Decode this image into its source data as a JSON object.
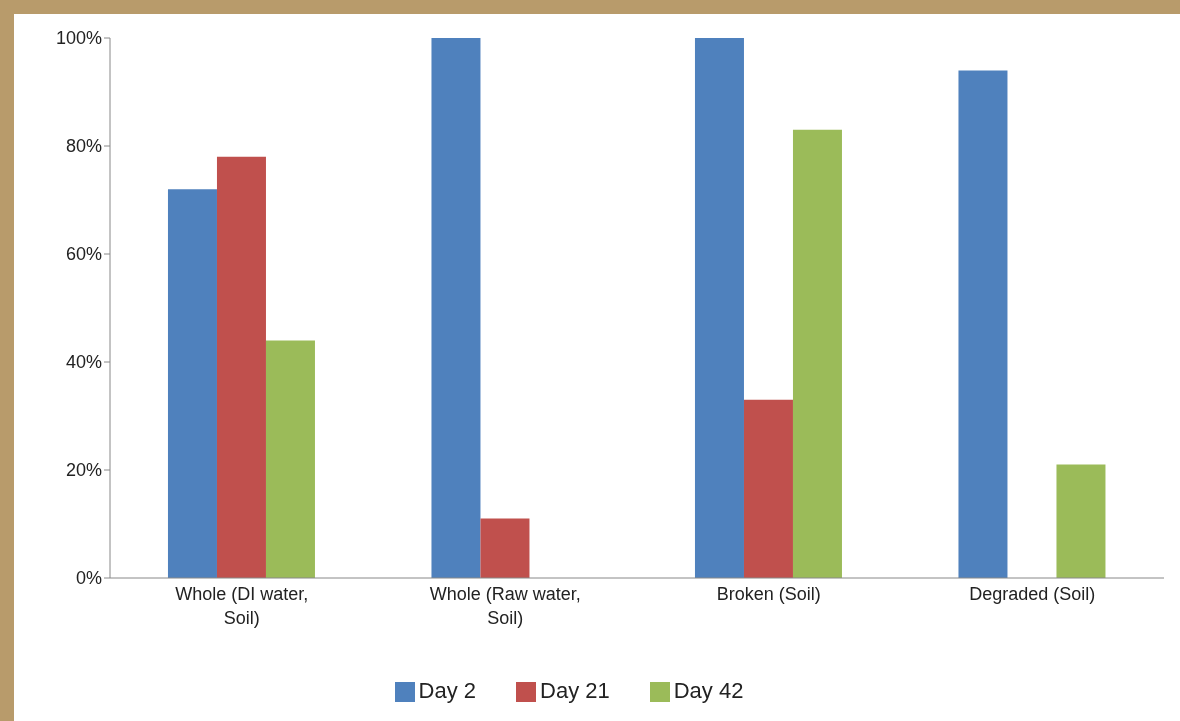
{
  "chart_data": {
    "type": "bar",
    "categories": [
      "Whole (DI water, Soil)",
      "Whole (Raw water, Soil)",
      "Broken (Soil)",
      "Degraded (Soil)"
    ],
    "series": [
      {
        "name": "Day 2",
        "color": "#4f81bd",
        "values": [
          72,
          100,
          100,
          94
        ]
      },
      {
        "name": "Day 21",
        "color": "#c0504d",
        "values": [
          78,
          11,
          33,
          null
        ]
      },
      {
        "name": "Day 42",
        "color": "#9bbb59",
        "values": [
          44,
          null,
          83,
          21
        ]
      }
    ],
    "ylim": [
      0,
      100
    ],
    "yticks": [
      {
        "value": 0,
        "label": "0%"
      },
      {
        "value": 20,
        "label": "20%"
      },
      {
        "value": 40,
        "label": "40%"
      },
      {
        "value": 60,
        "label": "60%"
      },
      {
        "value": 80,
        "label": "80%"
      },
      {
        "value": 100,
        "label": "100%"
      }
    ],
    "grid": false,
    "legend": "bottom"
  }
}
